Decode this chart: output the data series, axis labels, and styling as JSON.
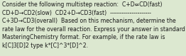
{
  "lines": [
    "Consider the following multistep reaction:  C+D⇍CD(fast)",
    "CD+D→CD2(slow)  CD2+D→CD3(fast)  ---------------------",
    "C+3D→CD3(overall)  Based on this mechanism, determine the",
    "rate law for the overall reaction. Express your answer in standard",
    "MasteringChemistry format. For example, if the rate law is",
    "k[C]3[D]2 type k*[C]^3*[D]^2."
  ],
  "bg_color": "#dce8d0",
  "text_color": "#1a1a1a",
  "font_size": 5.55,
  "fig_width": 2.62,
  "fig_height": 0.79,
  "dpi": 100
}
